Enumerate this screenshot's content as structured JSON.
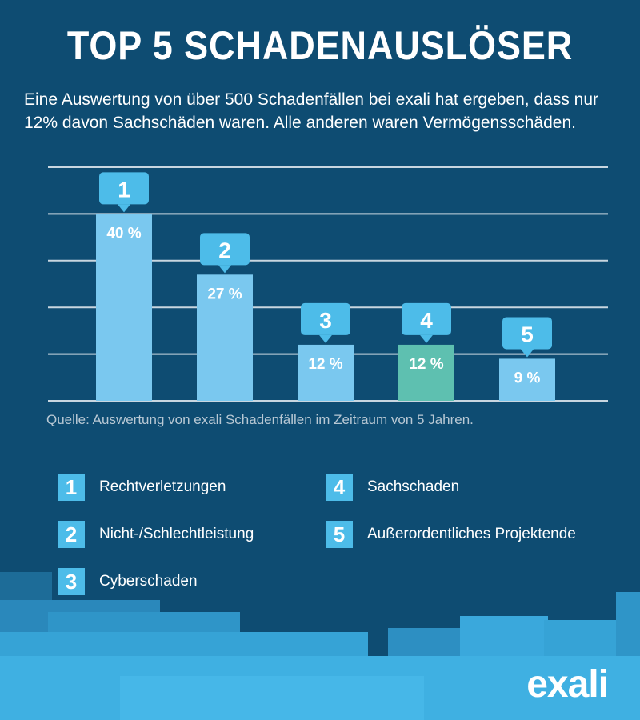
{
  "header": {
    "title": "TOP 5 SCHADENAUSLÖSER",
    "subtitle": "Eine Auswertung von über 500 Schadenfällen bei exali hat ergeben, dass nur 12% davon Sachschäden waren. Alle anderen waren Vermögensschäden."
  },
  "chart_data": {
    "type": "bar",
    "categories": [
      "Rechtverletzungen",
      "Nicht-/Schlechtleistung",
      "Cyberschaden",
      "Sachschaden",
      "Außerordentliches Projektende"
    ],
    "ranks": [
      "1",
      "2",
      "3",
      "4",
      "5"
    ],
    "values": [
      40,
      27,
      12,
      12,
      9
    ],
    "value_labels": [
      "40 %",
      "27 %",
      "12 %",
      "12 %",
      "9 %"
    ],
    "ylim": [
      0,
      50
    ],
    "grid": true,
    "bar_colors": [
      "#7ac8ef",
      "#7ac8ef",
      "#7ac8ef",
      "#5ec0b0",
      "#7ac8ef"
    ],
    "source": "Quelle: Auswertung von exali Schadenfällen im Zeitraum von 5 Jahren."
  },
  "legend": {
    "items": [
      {
        "num": "1",
        "label": "Rechtverletzungen"
      },
      {
        "num": "2",
        "label": "Nicht-/Schlechtleistung"
      },
      {
        "num": "3",
        "label": "Cyberschaden"
      },
      {
        "num": "4",
        "label": "Sachschaden"
      },
      {
        "num": "5",
        "label": "Außerordentliches Projektende"
      }
    ]
  },
  "brand": {
    "logo": "exali"
  },
  "colors": {
    "background": "#0e4c72",
    "accent": "#4dbce9",
    "bar": "#7ac8ef",
    "bar_highlight": "#5ec0b0",
    "grid": "#c8d6e0",
    "source_text": "#b8c8d4"
  }
}
